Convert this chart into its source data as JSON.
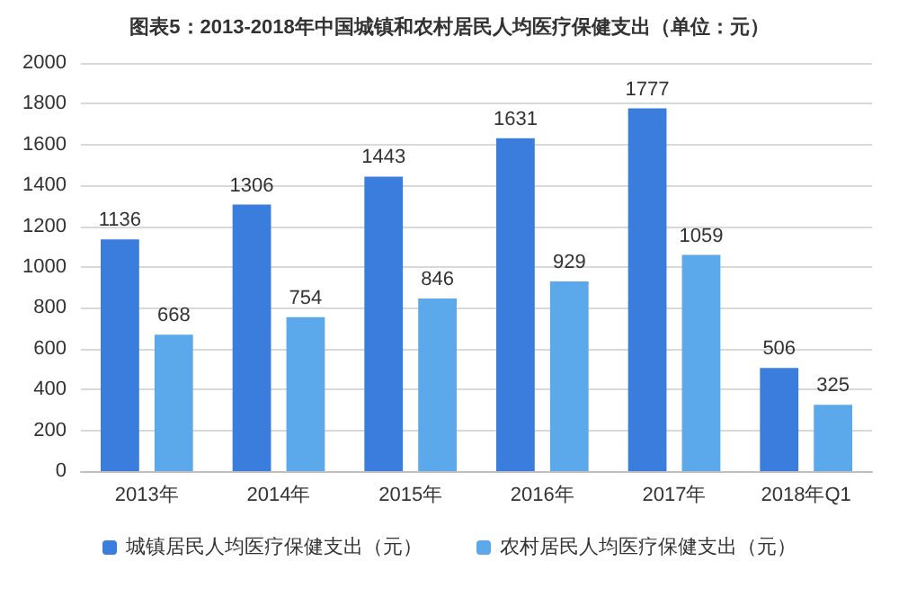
{
  "chart_data": {
    "type": "bar",
    "title": "图表5：2013-2018年中国城镇和农村居民人均医疗保健支出（单位：元）",
    "categories": [
      "2013年",
      "2014年",
      "2015年",
      "2016年",
      "2017年",
      "2018年Q1"
    ],
    "series": [
      {
        "name": "城镇居民人均医疗保健支出（元）",
        "color": "#3b7ddd",
        "values": [
          1136,
          1306,
          1443,
          1631,
          1777,
          506
        ]
      },
      {
        "name": "农村居民人均医疗保健支出（元）",
        "color": "#5ba8ea",
        "values": [
          668,
          754,
          846,
          929,
          1059,
          325
        ]
      }
    ],
    "ylim": [
      0,
      2000
    ],
    "yticks": [
      0,
      200,
      400,
      600,
      800,
      1000,
      1200,
      1400,
      1600,
      1800,
      2000
    ],
    "grid": "y",
    "legend": "bottom",
    "data_labels": true
  }
}
